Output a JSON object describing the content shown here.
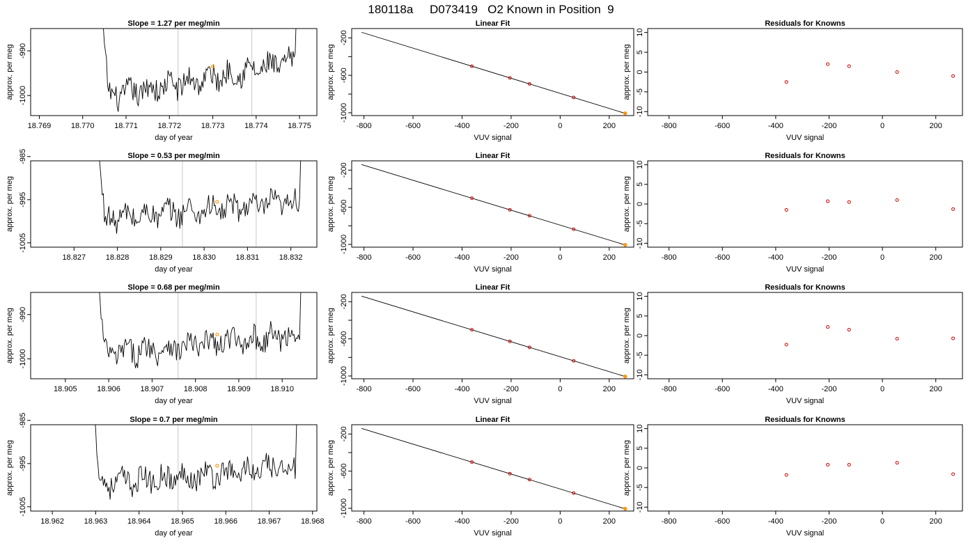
{
  "figure": {
    "title": "180118a     D073419   O2 Known in Position  9"
  },
  "colors": {
    "trace": "#000000",
    "mark_lines": "#c8c8c8",
    "point_marker": "#ff9900",
    "residual_marker": "#cc0000",
    "fit_line": "#000000"
  },
  "chart_data": [
    {
      "type": "line",
      "row": 1,
      "title": "Slope =  1.27  per meg/min",
      "xlabel": "day of year",
      "ylabel": "approx. per meg",
      "xlim": [
        18.7688,
        18.7754
      ],
      "ylim": [
        -1004.5,
        -985
      ],
      "xticks": [
        "18.769",
        "18.770",
        "18.771",
        "18.772",
        "18.773",
        "18.774",
        "18.775"
      ],
      "yticks": [
        "-990",
        "-1000"
      ],
      "baseline": -996.5,
      "rise": 8,
      "trace_start": 18.7705,
      "trace_end": 18.7749,
      "mark_lines_x": [
        18.7722,
        18.7739
      ],
      "marker": {
        "x": 18.773,
        "y": -993.5
      }
    },
    {
      "type": "line",
      "row": 2,
      "title": "Slope =  0.53  per meg/min",
      "xlabel": "day of year",
      "ylabel": "approx. per meg",
      "xlim": [
        18.826,
        18.8326
      ],
      "ylim": [
        -1006,
        -986
      ],
      "xticks": [
        "18.827",
        "18.828",
        "18.829",
        "18.830",
        "18.831",
        "18.832"
      ],
      "yticks": [
        "-985",
        "-995",
        "-1005"
      ],
      "baseline": -997.5,
      "rise": 4,
      "trace_start": 18.8276,
      "trace_end": 18.8322,
      "mark_lines_x": [
        18.8295,
        18.8312
      ],
      "marker": {
        "x": 18.8303,
        "y": -995.5
      }
    },
    {
      "type": "line",
      "row": 3,
      "title": "Slope =  0.68  per meg/min",
      "xlabel": "day of year",
      "ylabel": "approx. per meg",
      "xlim": [
        18.9042,
        18.9108
      ],
      "ylim": [
        -1004.5,
        -985
      ],
      "xticks": [
        "18.905",
        "18.906",
        "18.907",
        "18.908",
        "18.909",
        "18.910"
      ],
      "yticks": [
        "-990",
        "-1000"
      ],
      "baseline": -996.8,
      "rise": 4.5,
      "trace_start": 18.9058,
      "trace_end": 18.9104,
      "mark_lines_x": [
        18.9076,
        18.9094
      ],
      "marker": {
        "x": 18.9085,
        "y": -994.5
      }
    },
    {
      "type": "line",
      "row": 4,
      "title": "Slope =  0.7  per meg/min",
      "xlabel": "day of year",
      "ylabel": "approx. per meg",
      "xlim": [
        18.9615,
        18.9681
      ],
      "ylim": [
        -1006,
        -986
      ],
      "xticks": [
        "18.962",
        "18.963",
        "18.964",
        "18.965",
        "18.966",
        "18.967",
        "18.968"
      ],
      "yticks": [
        "-985",
        "-995",
        "-1005"
      ],
      "baseline": -997.8,
      "rise": 4,
      "trace_start": 18.963,
      "trace_end": 18.9676,
      "mark_lines_x": [
        18.9649,
        18.9666
      ],
      "marker": {
        "x": 18.9658,
        "y": -995.5
      }
    },
    {
      "type": "scatter",
      "row": 1,
      "title": "Linear Fit",
      "xlabel": "VUV signal",
      "ylabel": "approx. per meg",
      "xlim": [
        -850,
        300
      ],
      "ylim": [
        -1030,
        -100
      ],
      "xticks": [
        "-800",
        "-600",
        "-400",
        "-200",
        "0",
        "200"
      ],
      "yticks": [
        "-200",
        "-600",
        "-1000"
      ],
      "fit_line": {
        "x": [
          -810,
          270
        ],
        "y": [
          -140,
          -1010
        ]
      },
      "points": {
        "x": [
          -360,
          -205,
          -125,
          55,
          265
        ],
        "y": [
          -450,
          -575,
          -640,
          -785,
          -955
        ]
      },
      "highlight_point": {
        "x": 265,
        "y": -1005
      }
    },
    {
      "type": "scatter",
      "row": 2,
      "title": "Linear Fit",
      "xlabel": "VUV signal",
      "ylabel": "approx. per meg",
      "xlim": [
        -850,
        300
      ],
      "ylim": [
        -1030,
        -100
      ],
      "xticks": [
        "-800",
        "-600",
        "-400",
        "-200",
        "0",
        "200"
      ],
      "yticks": [
        "-200",
        "-600",
        "-1000"
      ],
      "fit_line": {
        "x": [
          -810,
          270
        ],
        "y": [
          -140,
          -1010
        ]
      },
      "points": {
        "x": [
          -360,
          -205,
          -125,
          55,
          265
        ],
        "y": [
          -450,
          -575,
          -640,
          -785,
          -955
        ]
      },
      "highlight_point": {
        "x": 265,
        "y": -1005
      }
    },
    {
      "type": "scatter",
      "row": 3,
      "title": "Linear Fit",
      "xlabel": "VUV signal",
      "ylabel": "approx. per meg",
      "xlim": [
        -850,
        300
      ],
      "ylim": [
        -1030,
        -100
      ],
      "xticks": [
        "-800",
        "-600",
        "-400",
        "-200",
        "0",
        "200"
      ],
      "yticks": [
        "-200",
        "-600",
        "-1000"
      ],
      "fit_line": {
        "x": [
          -810,
          270
        ],
        "y": [
          -140,
          -1010
        ]
      },
      "points": {
        "x": [
          -360,
          -205,
          -125,
          55,
          265
        ],
        "y": [
          -450,
          -575,
          -640,
          -785,
          -955
        ]
      },
      "highlight_point": {
        "x": 265,
        "y": -1005
      }
    },
    {
      "type": "scatter",
      "row": 4,
      "title": "Linear Fit",
      "xlabel": "VUV signal",
      "ylabel": "approx. per meg",
      "xlim": [
        -850,
        300
      ],
      "ylim": [
        -1030,
        -100
      ],
      "xticks": [
        "-800",
        "-600",
        "-400",
        "-200",
        "0",
        "200"
      ],
      "yticks": [
        "-200",
        "-600",
        "-1000"
      ],
      "fit_line": {
        "x": [
          -810,
          270
        ],
        "y": [
          -140,
          -1010
        ]
      },
      "points": {
        "x": [
          -360,
          -205,
          -125,
          55,
          265
        ],
        "y": [
          -450,
          -575,
          -640,
          -785,
          -955
        ]
      },
      "highlight_point": {
        "x": 265,
        "y": -1005
      }
    },
    {
      "type": "scatter",
      "row": 1,
      "title": "Residuals for Knowns",
      "xlabel": "VUV signal",
      "ylabel": "approx. per meg",
      "xlim": [
        -880,
        300
      ],
      "ylim": [
        -11,
        11
      ],
      "xticks": [
        "-800",
        "-600",
        "-400",
        "-200",
        "0",
        "200"
      ],
      "yticks": [
        "-10",
        "-5",
        "0",
        "5",
        "10"
      ],
      "points": {
        "x": [
          -360,
          -205,
          -125,
          55,
          265
        ],
        "y": [
          -2.5,
          2.0,
          1.5,
          0.0,
          -1.0
        ]
      }
    },
    {
      "type": "scatter",
      "row": 2,
      "title": "Residuals for Knowns",
      "xlabel": "VUV signal",
      "ylabel": "approx. per meg",
      "xlim": [
        -880,
        300
      ],
      "ylim": [
        -11,
        11
      ],
      "xticks": [
        "-800",
        "-600",
        "-400",
        "-200",
        "0",
        "200"
      ],
      "yticks": [
        "-10",
        "-5",
        "0",
        "5",
        "10"
      ],
      "points": {
        "x": [
          -360,
          -205,
          -125,
          55,
          265
        ],
        "y": [
          -1.5,
          0.7,
          0.5,
          1.0,
          -1.3
        ]
      }
    },
    {
      "type": "scatter",
      "row": 3,
      "title": "Residuals for Knowns",
      "xlabel": "VUV signal",
      "ylabel": "approx. per meg",
      "xlim": [
        -880,
        300
      ],
      "ylim": [
        -11,
        11
      ],
      "xticks": [
        "-800",
        "-600",
        "-400",
        "-200",
        "0",
        "200"
      ],
      "yticks": [
        "-10",
        "-5",
        "0",
        "5",
        "10"
      ],
      "points": {
        "x": [
          -360,
          -205,
          -125,
          55,
          265
        ],
        "y": [
          -2.3,
          2.2,
          1.5,
          -0.8,
          -0.7
        ]
      }
    },
    {
      "type": "scatter",
      "row": 4,
      "title": "Residuals for Knowns",
      "xlabel": "VUV signal",
      "ylabel": "approx. per meg",
      "xlim": [
        -880,
        300
      ],
      "ylim": [
        -11,
        11
      ],
      "xticks": [
        "-800",
        "-600",
        "-400",
        "-200",
        "0",
        "200"
      ],
      "yticks": [
        "-10",
        "-5",
        "0",
        "5",
        "10"
      ],
      "points": {
        "x": [
          -360,
          -205,
          -125,
          55,
          265
        ],
        "y": [
          -1.8,
          0.8,
          0.8,
          1.3,
          -1.6
        ]
      }
    }
  ]
}
